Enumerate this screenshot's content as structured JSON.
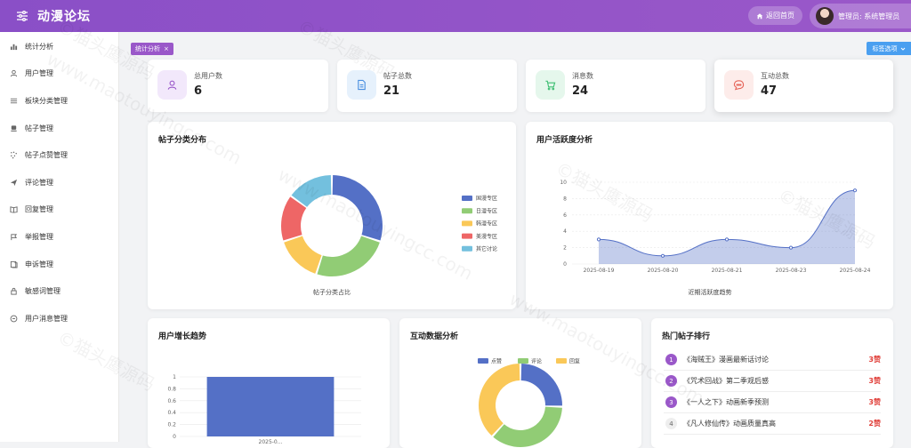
{
  "header": {
    "title": "动漫论坛",
    "home_button": "返回首页",
    "admin_label": "管理员: 系统管理员"
  },
  "sidebar": {
    "items": [
      {
        "label": "统计分析",
        "icon": "bar-chart-icon"
      },
      {
        "label": "用户管理",
        "icon": "user-icon"
      },
      {
        "label": "板块分类管理",
        "icon": "sliders-icon"
      },
      {
        "label": "帖子管理",
        "icon": "post-icon"
      },
      {
        "label": "帖子点赞管理",
        "icon": "sparkle-icon"
      },
      {
        "label": "评论管理",
        "icon": "send-icon"
      },
      {
        "label": "回复管理",
        "icon": "book-icon"
      },
      {
        "label": "举报管理",
        "icon": "report-icon"
      },
      {
        "label": "申诉管理",
        "icon": "appeal-icon"
      },
      {
        "label": "敏感词管理",
        "icon": "lock-icon"
      },
      {
        "label": "用户消息管理",
        "icon": "message-icon"
      }
    ]
  },
  "tabs": {
    "active": "统计分析",
    "close": "×",
    "options": "标签选项"
  },
  "stats": [
    {
      "label": "总用户数",
      "value": "6",
      "icon": "user-icon",
      "color": "#9a58c9",
      "bg": "#f2e8fb"
    },
    {
      "label": "帖子总数",
      "value": "21",
      "icon": "document-icon",
      "color": "#4a8fe0",
      "bg": "#e6f1fc"
    },
    {
      "label": "消息数",
      "value": "24",
      "icon": "cart-icon",
      "color": "#3fbf73",
      "bg": "#e5f7ec"
    },
    {
      "label": "互动总数",
      "value": "47",
      "icon": "chat-icon",
      "color": "#e6655a",
      "bg": "#fdecea"
    }
  ],
  "colors": {
    "blue": "#5470c6",
    "green": "#91cc75",
    "yellow": "#fac858",
    "red": "#ee6666",
    "cyan": "#73c0de"
  },
  "category_chart": {
    "title": "帖子分类分布",
    "chart_data": {
      "type": "pie",
      "title": "帖子分类占比",
      "series": [
        {
          "name": "国漫专区",
          "value": 6,
          "color": "#5470c6"
        },
        {
          "name": "日漫专区",
          "value": 5,
          "color": "#91cc75"
        },
        {
          "name": "韩漫专区",
          "value": 3,
          "color": "#fac858"
        },
        {
          "name": "美漫专区",
          "value": 3,
          "color": "#ee6666"
        },
        {
          "name": "其它讨论",
          "value": 3,
          "color": "#73c0de"
        }
      ],
      "legend": "right"
    }
  },
  "activity_chart": {
    "title": "用户活跃度分析",
    "chart_data": {
      "type": "area",
      "xlabel": "近期活跃度趋势",
      "x": [
        "2025-08-19",
        "2025-08-20",
        "2025-08-21",
        "2025-08-23",
        "2025-08-24"
      ],
      "values": [
        3,
        1,
        3,
        2,
        9
      ],
      "ylim": [
        0,
        10
      ],
      "yticks": [
        0,
        2,
        4,
        6,
        8,
        10
      ],
      "color": "#5470c6"
    }
  },
  "growth_chart": {
    "title": "用户增长趋势",
    "chart_data": {
      "type": "bar",
      "categories": [
        "2025-0..."
      ],
      "values": [
        1
      ],
      "ylim": [
        0,
        1
      ],
      "yticks": [
        0,
        0.2,
        0.4,
        0.6,
        0.8,
        1
      ],
      "color": "#5470c6"
    }
  },
  "interaction_chart": {
    "title": "互动数据分析",
    "chart_data": {
      "type": "pie",
      "series": [
        {
          "name": "点赞",
          "value": 12,
          "color": "#5470c6"
        },
        {
          "name": "评论",
          "value": 17,
          "color": "#91cc75"
        },
        {
          "name": "回复",
          "value": 18,
          "color": "#fac858"
        }
      ],
      "legend": "top"
    }
  },
  "hot_posts": {
    "title": "热门帖子排行",
    "items": [
      {
        "rank": "1",
        "title": "《海贼王》漫画最新话讨论",
        "likes": "3赞"
      },
      {
        "rank": "2",
        "title": "《咒术回战》第二季观后感",
        "likes": "3赞"
      },
      {
        "rank": "3",
        "title": "《一人之下》动画新季预测",
        "likes": "3赞"
      },
      {
        "rank": "4",
        "title": "《凡人修仙传》动画质量真高",
        "likes": "2赞"
      }
    ]
  },
  "watermark": {
    "a": "©猫头鹰源码",
    "b": "www.maotouyingcc.com"
  }
}
